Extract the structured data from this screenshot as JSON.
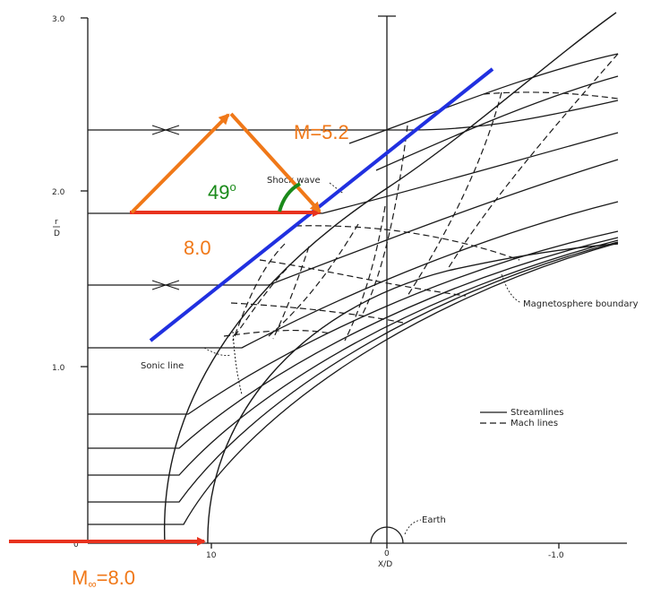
{
  "labels": {
    "y_tick_30": "3.0",
    "y_tick_20": "2.0",
    "y_tick_10": "1.0",
    "y_tick_0": "0",
    "y_axis_r": "r",
    "y_axis_d": "D",
    "x_tick_10": "10",
    "x_tick_0": "0",
    "x_tick_neg10": "-1.0",
    "x_axis_label": "X/D",
    "shock_wave": "Shock wave",
    "sonic_line": "Sonic line",
    "magnetosphere_boundary": "Magnetosphere boundary",
    "earth": "Earth",
    "legend_streamlines": "Streamlines",
    "legend_mach_lines": "Mach lines"
  },
  "annotations": {
    "mach_value": "M=5.2",
    "angle_value": "49",
    "angle_unit": "o",
    "speed_value": "8.0",
    "freestream_m": "M",
    "freestream_sub": "∞",
    "freestream_value": "=8.0"
  },
  "colors": {
    "line_ink": "#1a1a1a",
    "orange": "#f07818",
    "red": "#e8321e",
    "blue": "#2030e0",
    "green": "#1a8a1a"
  }
}
